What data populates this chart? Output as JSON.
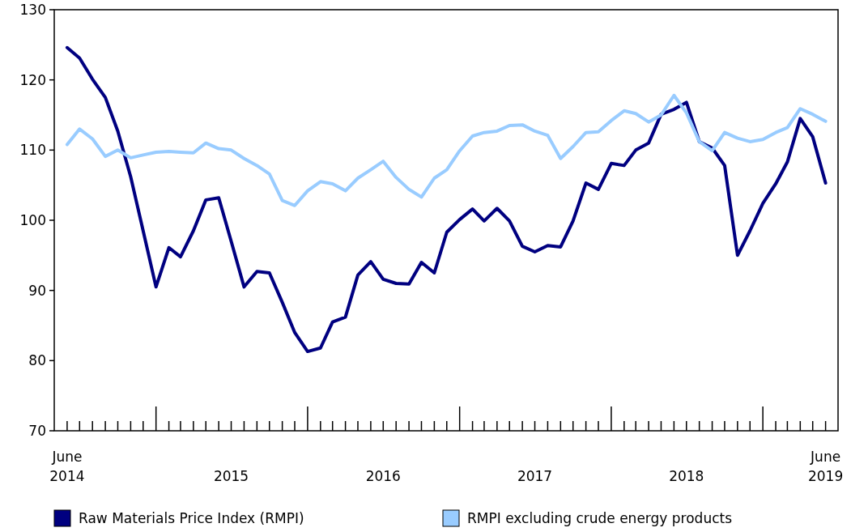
{
  "chart_data": {
    "type": "line",
    "x": [
      "2014-06",
      "2014-07",
      "2014-08",
      "2014-09",
      "2014-10",
      "2014-11",
      "2014-12",
      "2015-01",
      "2015-02",
      "2015-03",
      "2015-04",
      "2015-05",
      "2015-06",
      "2015-07",
      "2015-08",
      "2015-09",
      "2015-10",
      "2015-11",
      "2015-12",
      "2016-01",
      "2016-02",
      "2016-03",
      "2016-04",
      "2016-05",
      "2016-06",
      "2016-07",
      "2016-08",
      "2016-09",
      "2016-10",
      "2016-11",
      "2016-12",
      "2017-01",
      "2017-02",
      "2017-03",
      "2017-04",
      "2017-05",
      "2017-06",
      "2017-07",
      "2017-08",
      "2017-09",
      "2017-10",
      "2017-11",
      "2017-12",
      "2018-01",
      "2018-02",
      "2018-03",
      "2018-04",
      "2018-05",
      "2018-06",
      "2018-07",
      "2018-08",
      "2018-09",
      "2018-10",
      "2018-11",
      "2018-12",
      "2019-01",
      "2019-02",
      "2019-03",
      "2019-04",
      "2019-05",
      "2019-06"
    ],
    "series": [
      {
        "name": "Raw Materials Price Index (RMPI)",
        "color": "#000080",
        "values": [
          124.6,
          123.1,
          120.1,
          117.5,
          112.7,
          106.2,
          98.5,
          90.5,
          96.1,
          94.8,
          98.5,
          102.9,
          103.2,
          97.0,
          90.5,
          92.7,
          92.5,
          88.3,
          84.0,
          81.3,
          81.8,
          85.5,
          86.2,
          92.2,
          94.1,
          91.6,
          91.0,
          90.9,
          94.0,
          92.5,
          98.3,
          100.1,
          101.6,
          99.9,
          101.7,
          99.9,
          96.3,
          95.5,
          96.4,
          96.2,
          99.9,
          105.3,
          104.4,
          108.1,
          107.8,
          110.0,
          111.0,
          115.1,
          115.8,
          116.8,
          111.2,
          110.3,
          107.8,
          95.0,
          98.5,
          102.4,
          105.2,
          108.3,
          114.5,
          111.9,
          105.3
        ]
      },
      {
        "name": "RMPI excluding crude energy products",
        "color": "#99ccff",
        "values": [
          110.8,
          113.0,
          111.6,
          109.1,
          110.0,
          108.9,
          109.3,
          109.7,
          109.8,
          109.7,
          109.6,
          111.0,
          110.2,
          110.0,
          108.8,
          107.8,
          106.6,
          102.8,
          102.1,
          104.2,
          105.5,
          105.2,
          104.2,
          106.0,
          107.2,
          108.4,
          106.1,
          104.4,
          103.3,
          106.0,
          107.2,
          109.9,
          112.0,
          112.5,
          112.7,
          113.5,
          113.6,
          112.7,
          112.1,
          108.8,
          110.5,
          112.5,
          112.6,
          114.2,
          115.6,
          115.2,
          114.0,
          115.0,
          117.8,
          115.3,
          111.2,
          109.9,
          112.5,
          111.7,
          111.2,
          111.5,
          112.5,
          113.2,
          115.9,
          115.1,
          114.1
        ]
      }
    ],
    "xlim": [
      "2014-05",
      "2019-07"
    ],
    "xticks": [
      {
        "value": "2014-06",
        "label": "June\n2014"
      },
      {
        "value": "2014-07",
        "label": null
      },
      {
        "value": "2014-08",
        "label": null
      },
      {
        "value": "2014-09",
        "label": null
      },
      {
        "value": "2014-10",
        "label": null
      },
      {
        "value": "2014-11",
        "label": null
      },
      {
        "value": "2014-12",
        "label": null
      },
      {
        "value": "2015-01",
        "label": null
      },
      {
        "value": "2015-02",
        "label": null
      },
      {
        "value": "2015-03",
        "label": null
      },
      {
        "value": "2015-04",
        "label": null
      },
      {
        "value": "2015-05",
        "label": null
      },
      {
        "value": "2015-06",
        "label": null
      },
      {
        "value": "2015-07",
        "label": "2015"
      },
      {
        "value": "2015-08",
        "label": null
      },
      {
        "value": "2015-09",
        "label": null
      },
      {
        "value": "2015-10",
        "label": null
      },
      {
        "value": "2015-11",
        "label": null
      },
      {
        "value": "2015-12",
        "label": null
      },
      {
        "value": "2016-01",
        "label": null
      },
      {
        "value": "2016-02",
        "label": null
      },
      {
        "value": "2016-03",
        "label": null
      },
      {
        "value": "2016-04",
        "label": null
      },
      {
        "value": "2016-05",
        "label": null
      },
      {
        "value": "2016-06",
        "label": null
      },
      {
        "value": "2016-07",
        "label": "2016"
      },
      {
        "value": "2016-08",
        "label": null
      },
      {
        "value": "2016-09",
        "label": null
      },
      {
        "value": "2016-10",
        "label": null
      },
      {
        "value": "2016-11",
        "label": null
      },
      {
        "value": "2016-12",
        "label": null
      },
      {
        "value": "2017-01",
        "label": null
      },
      {
        "value": "2017-02",
        "label": null
      },
      {
        "value": "2017-03",
        "label": null
      },
      {
        "value": "2017-04",
        "label": null
      },
      {
        "value": "2017-05",
        "label": null
      },
      {
        "value": "2017-06",
        "label": null
      },
      {
        "value": "2017-07",
        "label": "2017"
      },
      {
        "value": "2017-08",
        "label": null
      },
      {
        "value": "2017-09",
        "label": null
      },
      {
        "value": "2017-10",
        "label": null
      },
      {
        "value": "2017-11",
        "label": null
      },
      {
        "value": "2017-12",
        "label": null
      },
      {
        "value": "2018-01",
        "label": null
      },
      {
        "value": "2018-02",
        "label": null
      },
      {
        "value": "2018-03",
        "label": null
      },
      {
        "value": "2018-04",
        "label": null
      },
      {
        "value": "2018-05",
        "label": null
      },
      {
        "value": "2018-06",
        "label": null
      },
      {
        "value": "2018-07",
        "label": "2018"
      },
      {
        "value": "2018-08",
        "label": null
      },
      {
        "value": "2018-09",
        "label": null
      },
      {
        "value": "2018-10",
        "label": null
      },
      {
        "value": "2018-11",
        "label": null
      },
      {
        "value": "2018-12",
        "label": null
      },
      {
        "value": "2019-01",
        "label": null
      },
      {
        "value": "2019-02",
        "label": null
      },
      {
        "value": "2019-03",
        "label": null
      },
      {
        "value": "2019-04",
        "label": null
      },
      {
        "value": "2019-05",
        "label": null
      },
      {
        "value": "2019-06",
        "label": "June\n2019"
      }
    ],
    "ylim": [
      70,
      130
    ],
    "yticks": [
      70,
      80,
      90,
      100,
      110,
      120,
      130
    ],
    "grid": false,
    "legend": "bottom",
    "marker": "none",
    "line_style": "solid"
  }
}
